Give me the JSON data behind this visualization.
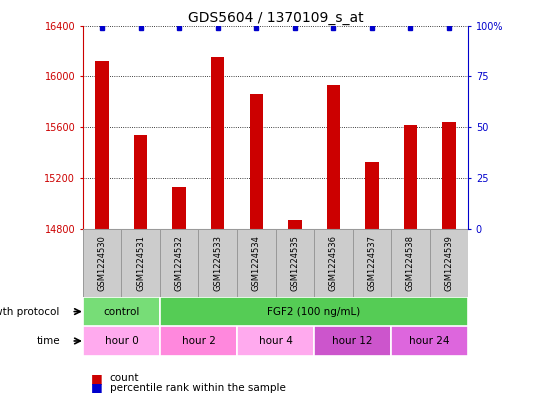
{
  "title": "GDS5604 / 1370109_s_at",
  "samples": [
    "GSM1224530",
    "GSM1224531",
    "GSM1224532",
    "GSM1224533",
    "GSM1224534",
    "GSM1224535",
    "GSM1224536",
    "GSM1224537",
    "GSM1224538",
    "GSM1224539"
  ],
  "counts": [
    16120,
    15540,
    15130,
    16150,
    15860,
    14870,
    15930,
    15330,
    15620,
    15640
  ],
  "percentiles": [
    99,
    99,
    99,
    99,
    99,
    99,
    99,
    99,
    99,
    99
  ],
  "ylim_left": [
    14800,
    16400
  ],
  "ylim_right": [
    0,
    100
  ],
  "yticks_left": [
    14800,
    15200,
    15600,
    16000,
    16400
  ],
  "yticks_right": [
    0,
    25,
    50,
    75,
    100
  ],
  "bar_color": "#cc0000",
  "percentile_color": "#0000cc",
  "bar_width": 0.35,
  "background_color": "#ffffff",
  "sample_cell_color": "#cccccc",
  "sample_cell_edge_color": "#999999",
  "growth_protocol_label": "growth protocol",
  "time_label": "time",
  "protocol_groups": [
    {
      "label": "control",
      "start": 0,
      "end": 2,
      "color": "#77dd77"
    },
    {
      "label": "FGF2 (100 ng/mL)",
      "start": 2,
      "end": 10,
      "color": "#55cc55"
    }
  ],
  "time_groups": [
    {
      "label": "hour 0",
      "start": 0,
      "end": 2,
      "color": "#ffaaee"
    },
    {
      "label": "hour 2",
      "start": 2,
      "end": 4,
      "color": "#ff88dd"
    },
    {
      "label": "hour 4",
      "start": 4,
      "end": 6,
      "color": "#ffaaee"
    },
    {
      "label": "hour 12",
      "start": 6,
      "end": 8,
      "color": "#cc55cc"
    },
    {
      "label": "hour 24",
      "start": 8,
      "end": 10,
      "color": "#dd66dd"
    }
  ],
  "legend_count_label": "count",
  "legend_percentile_label": "percentile rank within the sample"
}
